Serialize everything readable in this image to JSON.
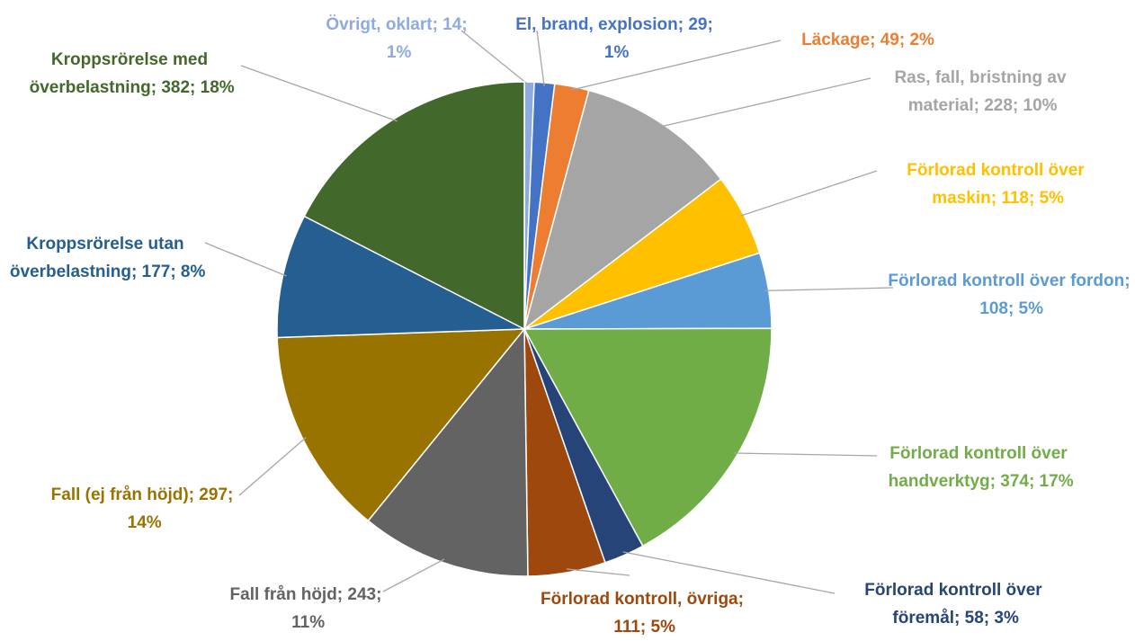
{
  "chart_data": {
    "type": "pie",
    "values": [
      14,
      29,
      49,
      228,
      118,
      108,
      374,
      58,
      111,
      243,
      297,
      177,
      382
    ],
    "value_labels": [
      "Övrigt, oklart; 14; 1%",
      "El, brand, explosion; 29; 1%",
      "Läckage; 49; 2%",
      "Ras, fall, bristning av material; 228; 10%",
      "Förlorad kontroll över maskin; 118; 5%",
      "Förlorad kontroll över fordon; 108; 5%",
      "Förlorad kontroll över handverktyg; 374; 17%",
      "Förlorad kontroll över föremål; 58; 3%",
      "Förlorad kontroll, övriga; 111; 5%",
      "Fall från höjd; 243; 11%",
      "Fall (ej från höjd); 297; 14%",
      "Kroppsrörelse utan överbelastning; 177; 8%",
      "Kroppsrörelse med överbelastning; 382; 18%"
    ],
    "colors": [
      "#8faadc",
      "#4472c4",
      "#ed7d31",
      "#a5a5a5",
      "#ffc000",
      "#5b9bd5",
      "#70ad47",
      "#264478",
      "#9e480e",
      "#636363",
      "#997300",
      "#255e91",
      "#43682b"
    ]
  }
}
